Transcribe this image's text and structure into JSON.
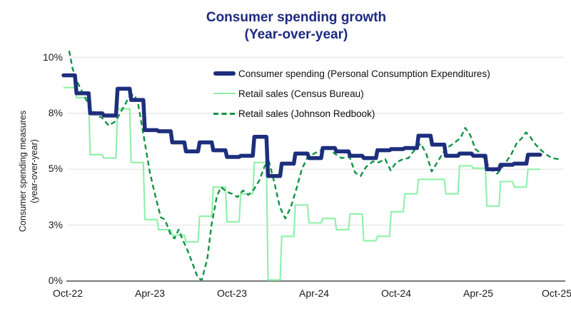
{
  "header": {
    "title_line1": "Consumer spending growth",
    "title_line2": "(Year-over-year)"
  },
  "y_axis": {
    "label_line1": "Consumer spending measures",
    "label_line2": "(year-over-year)",
    "ticks": [
      {
        "label": "10%",
        "value": 10
      },
      {
        "label": "8%",
        "value": 7.5
      },
      {
        "label": "5%",
        "value": 5
      },
      {
        "label": "3%",
        "value": 2.5
      },
      {
        "label": "0%",
        "value": 0
      }
    ]
  },
  "x_axis": {
    "ticks": [
      {
        "label": "Oct-22",
        "month": 0
      },
      {
        "label": "Apr-23",
        "month": 6
      },
      {
        "label": "Oct-23",
        "month": 12
      },
      {
        "label": "Apr-24",
        "month": 18
      },
      {
        "label": "Oct-24",
        "month": 24
      },
      {
        "label": "Apr-25",
        "month": 30
      },
      {
        "label": "Oct-25",
        "month": 36
      }
    ]
  },
  "legend": [
    {
      "label": "Consumer spending (Personal Consumption Expenditures)",
      "color": "#1d2f7c",
      "style": "solid-thick"
    },
    {
      "label": "Retail sales (Census Bureau)",
      "color": "#8ef0a8",
      "style": "solid-thin"
    },
    {
      "label": "Retail sales (Johnson Redbook)",
      "color": "#109245",
      "style": "dashed"
    }
  ],
  "colors": {
    "title": "#1c2a80",
    "pce_line": "#1d2f7c",
    "census_line": "#8ef0a8",
    "redbook_line": "#109245",
    "gridline": "#e8e8e8",
    "zero_axis": "#7f7f7f",
    "tick_text": "#1a1a1a"
  },
  "chart_data": {
    "type": "line",
    "title": "Consumer spending growth (Year-over-year)",
    "ylabel": "Consumer spending measures (year-over-year)",
    "xlabel": "",
    "ylim": [
      0,
      10.45
    ],
    "xlim_months": [
      0,
      36.2
    ],
    "grid_values": [
      10,
      7.5,
      5,
      2.5
    ],
    "x_tick_labels": [
      "Oct-22",
      "Apr-23",
      "Oct-23",
      "Apr-24",
      "Oct-24",
      "Apr-25",
      "Oct-25"
    ],
    "x_unit": "months since Oct-2022",
    "legend_position": "top-center-inside",
    "series": [
      {
        "name": "Consumer spending (Personal Consumption Expenditures)",
        "style": "step-thick",
        "color": "#1d2f7c",
        "start_month": 0,
        "cadence": "monthly",
        "first_label": "Oct-22",
        "last_label": "Aug-25",
        "values_pct": [
          9.2,
          8.4,
          7.5,
          7.4,
          8.6,
          8.1,
          6.75,
          6.7,
          6.2,
          5.8,
          6.2,
          5.85,
          5.55,
          5.6,
          6.45,
          4.7,
          5.25,
          5.7,
          5.5,
          5.95,
          5.8,
          5.6,
          5.5,
          5.85,
          5.9,
          5.95,
          6.5,
          6.1,
          5.6,
          5.7,
          5.6,
          5.0,
          5.2,
          5.25,
          5.65
        ]
      },
      {
        "name": "Retail sales (Census Bureau)",
        "style": "step-thin",
        "color": "#8ef0a8",
        "start_month": 0,
        "cadence": "monthly",
        "first_label": "Oct-22",
        "last_label": "Aug-25",
        "values_pct": [
          8.65,
          8.2,
          5.65,
          5.5,
          7.7,
          5.3,
          2.75,
          2.3,
          2.05,
          1.75,
          2.9,
          4.2,
          2.65,
          3.9,
          5.3,
          0.05,
          2.0,
          3.4,
          2.6,
          2.8,
          2.3,
          3.0,
          1.8,
          2.0,
          3.1,
          3.9,
          4.55,
          4.55,
          3.9,
          5.15,
          5.05,
          3.35,
          4.45,
          4.2,
          5.0
        ]
      },
      {
        "name": "Retail sales (Johnson Redbook)",
        "style": "dashed",
        "color": "#109245",
        "cadence": "weekly",
        "points_month_pct": [
          [
            0.1,
            10.3
          ],
          [
            0.35,
            9.5
          ],
          [
            0.7,
            8.9
          ],
          [
            1.1,
            8.4
          ],
          [
            1.6,
            7.8
          ],
          [
            2.0,
            7.45
          ],
          [
            2.5,
            7.3
          ],
          [
            3.0,
            6.95
          ],
          [
            3.5,
            7.15
          ],
          [
            4.0,
            7.7
          ],
          [
            4.5,
            8.25
          ],
          [
            4.8,
            8.35
          ],
          [
            5.1,
            8.05
          ],
          [
            5.6,
            6.3
          ],
          [
            6.0,
            4.85
          ],
          [
            6.4,
            3.8
          ],
          [
            6.8,
            2.85
          ],
          [
            7.1,
            2.75
          ],
          [
            7.5,
            2.1
          ],
          [
            7.8,
            1.9
          ],
          [
            8.1,
            2.3
          ],
          [
            8.4,
            1.85
          ],
          [
            8.8,
            1.3
          ],
          [
            9.2,
            0.65
          ],
          [
            9.5,
            0.15
          ],
          [
            9.8,
            0.05
          ],
          [
            10.2,
            1.0
          ],
          [
            10.5,
            2.5
          ],
          [
            10.9,
            3.8
          ],
          [
            11.2,
            4.2
          ],
          [
            11.6,
            4.0
          ],
          [
            12.0,
            3.9
          ],
          [
            12.4,
            3.75
          ],
          [
            12.8,
            4.05
          ],
          [
            13.2,
            3.85
          ],
          [
            13.6,
            4.1
          ],
          [
            14.0,
            4.5
          ],
          [
            14.4,
            5.15
          ],
          [
            14.7,
            5.35
          ],
          [
            15.1,
            4.4
          ],
          [
            15.5,
            3.3
          ],
          [
            15.9,
            2.8
          ],
          [
            16.3,
            3.3
          ],
          [
            16.7,
            4.1
          ],
          [
            17.1,
            5.0
          ],
          [
            17.5,
            5.5
          ],
          [
            18.0,
            5.7
          ],
          [
            18.5,
            5.85
          ],
          [
            19.0,
            6.0
          ],
          [
            19.5,
            5.7
          ],
          [
            20.0,
            5.5
          ],
          [
            20.6,
            5.55
          ],
          [
            21.0,
            4.85
          ],
          [
            21.4,
            4.7
          ],
          [
            21.8,
            5.1
          ],
          [
            22.3,
            5.35
          ],
          [
            22.7,
            5.3
          ],
          [
            23.2,
            5.45
          ],
          [
            23.6,
            4.95
          ],
          [
            24.0,
            5.3
          ],
          [
            24.5,
            5.45
          ],
          [
            24.9,
            5.5
          ],
          [
            25.4,
            5.9
          ],
          [
            25.8,
            6.15
          ],
          [
            26.2,
            5.7
          ],
          [
            26.6,
            4.9
          ],
          [
            27.0,
            5.3
          ],
          [
            27.6,
            5.9
          ],
          [
            28.2,
            6.15
          ],
          [
            28.7,
            6.4
          ],
          [
            29.05,
            6.85
          ],
          [
            29.4,
            6.55
          ],
          [
            29.8,
            5.9
          ],
          [
            30.2,
            5.7
          ],
          [
            30.6,
            5.3
          ],
          [
            31.0,
            4.95
          ],
          [
            31.4,
            4.8
          ],
          [
            31.9,
            5.2
          ],
          [
            32.4,
            5.65
          ],
          [
            32.8,
            6.15
          ],
          [
            33.2,
            6.4
          ],
          [
            33.5,
            6.65
          ],
          [
            33.8,
            6.45
          ],
          [
            34.2,
            6.1
          ],
          [
            34.6,
            5.85
          ],
          [
            35.0,
            5.65
          ],
          [
            35.4,
            5.5
          ],
          [
            35.9,
            5.45
          ]
        ]
      }
    ]
  }
}
